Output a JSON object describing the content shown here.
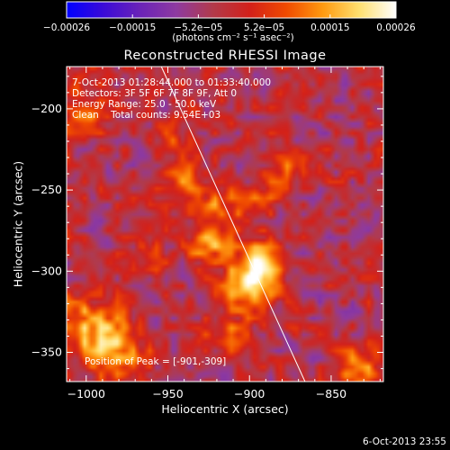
{
  "chart_data": {
    "type": "heatmap",
    "title": "Reconstructed RHESSI Image",
    "xlabel": "Heliocentric X (arcsec)",
    "ylabel": "Heliocentric Y (arcsec)",
    "xlim": [
      -1012,
      -818
    ],
    "ylim": [
      -368,
      -174
    ],
    "xticks": [
      -1000,
      -950,
      -900,
      -850
    ],
    "yticks": [
      -350,
      -300,
      -250,
      -200
    ],
    "xtick_labels": [
      "−1000",
      "−950",
      "−900",
      "−850"
    ],
    "ytick_labels": [
      "−350",
      "−300",
      "−250",
      "−200"
    ],
    "colorbar": {
      "range": [
        -0.00026,
        0.00026
      ],
      "tick_labels": [
        "−0.00026",
        "−0.00015",
        "−5.2e−05",
        "5.2e−05",
        "0.00015",
        "0.00026"
      ],
      "units_label": "(photons cm⁻² s⁻¹ asec⁻²)",
      "colormap": [
        "#0000ff",
        "#3a0ad8",
        "#6a23b8",
        "#8e3aa0",
        "#b23a4a",
        "#d3201a",
        "#f04a00",
        "#ff9a10",
        "#ffe070",
        "#ffffff"
      ]
    },
    "limb": {
      "x": [
        -954,
        -866
      ],
      "y": [
        -174,
        -368
      ]
    },
    "peak": {
      "x": -901,
      "y": -309
    },
    "sources": [
      {
        "x": -901,
        "y": -309,
        "amp": 0.00026,
        "sigma": 10
      },
      {
        "x": -893,
        "y": -293,
        "amp": 0.00018,
        "sigma": 9
      },
      {
        "x": -925,
        "y": -282,
        "amp": 0.00016,
        "sigma": 9
      },
      {
        "x": -918,
        "y": -262,
        "amp": 0.00014,
        "sigma": 8
      },
      {
        "x": -896,
        "y": -258,
        "amp": 0.00012,
        "sigma": 8
      },
      {
        "x": -940,
        "y": -244,
        "amp": 0.00011,
        "sigma": 9
      },
      {
        "x": -960,
        "y": -292,
        "amp": 0.0001,
        "sigma": 8
      },
      {
        "x": -985,
        "y": -345,
        "amp": 0.0002,
        "sigma": 13
      },
      {
        "x": -1005,
        "y": -330,
        "amp": 0.00014,
        "sigma": 10
      },
      {
        "x": -1002,
        "y": -200,
        "amp": 0.00012,
        "sigma": 10
      },
      {
        "x": -880,
        "y": -236,
        "amp": 9e-05,
        "sigma": 8
      },
      {
        "x": -835,
        "y": -360,
        "amp": 0.00018,
        "sigma": 9
      },
      {
        "x": -915,
        "y": -338,
        "amp": 0.0001,
        "sigma": 9
      },
      {
        "x": -945,
        "y": -220,
        "amp": 8e-05,
        "sigma": 8
      }
    ]
  },
  "annotations": {
    "line1": "7-Oct-2013 01:28:44.000 to 01:33:40.000",
    "line2": "Detectors: 3F 5F 6F 7F 8F 9F, Att 0",
    "line3": "Energy Range: 25.0 - 50.0 keV",
    "line4": "Clean    Total counts: 9.54E+03",
    "peak_text": "Position of Peak = [-901,-309]"
  },
  "footer_timestamp": "6-Oct-2013 23:55"
}
